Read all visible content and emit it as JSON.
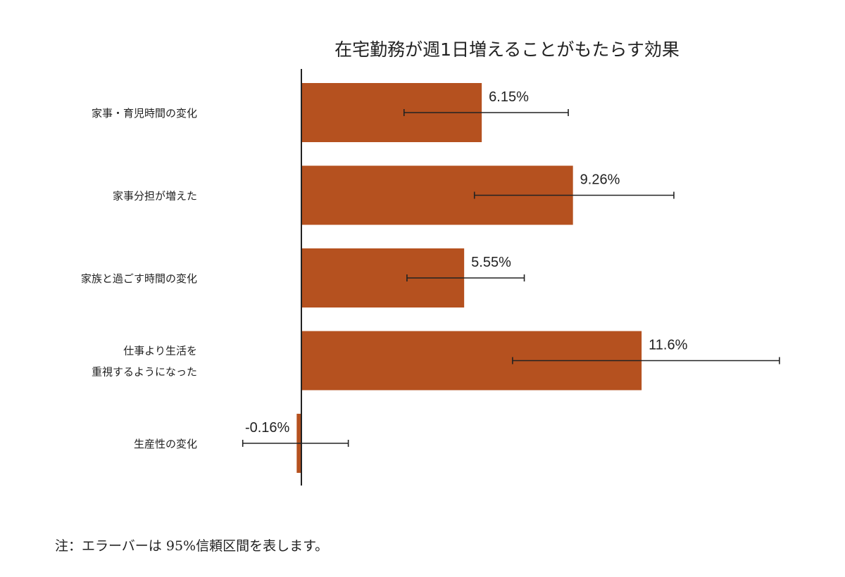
{
  "chart_data": {
    "type": "bar",
    "orientation": "horizontal",
    "title": "在宅勤務が週1日増えることがもたらす効果",
    "categories": [
      [
        "家事・育児時間の変化"
      ],
      [
        "家事分担が増えた"
      ],
      [
        "家族と過ごす時間の変化"
      ],
      [
        "仕事より生活を",
        "重視するようになった"
      ],
      [
        "生産性の変化"
      ]
    ],
    "values": [
      6.15,
      9.26,
      5.55,
      11.6,
      -0.16
    ],
    "value_labels": [
      "6.15%",
      "9.26%",
      "5.55%",
      "11.6%",
      "-0.16%"
    ],
    "error_bars": [
      [
        3.5,
        9.1
      ],
      [
        5.9,
        12.7
      ],
      [
        3.6,
        7.6
      ],
      [
        7.2,
        16.3
      ],
      [
        -2.0,
        1.6
      ]
    ],
    "xlim": [
      -2.0,
      16.5
    ],
    "grid": false,
    "bar_color": "#b5511f"
  },
  "footnote": "注：エラーバーは 95%信頼区間を表します。"
}
